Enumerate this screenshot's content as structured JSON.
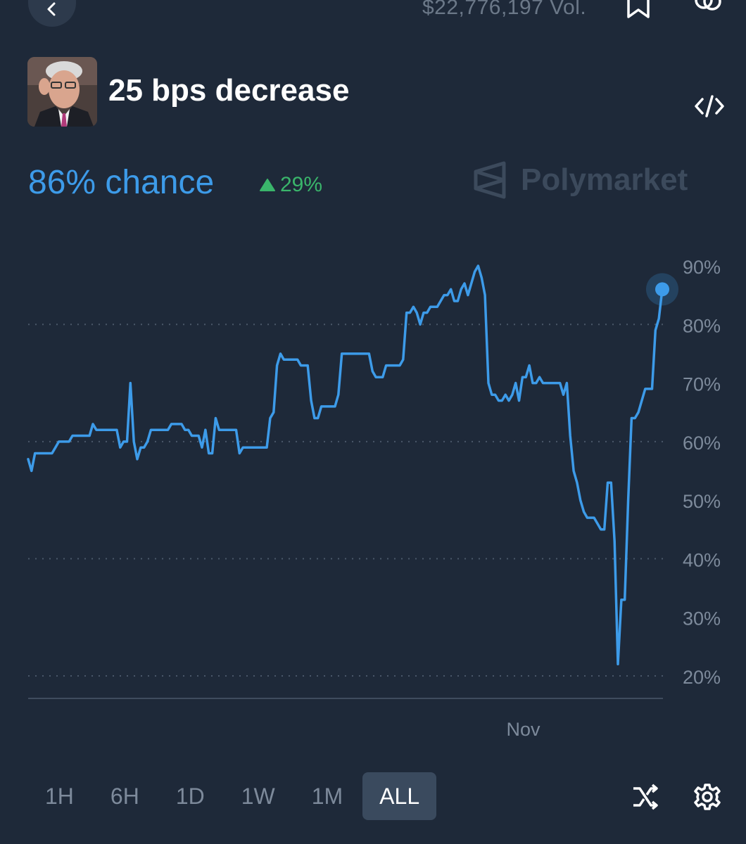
{
  "header": {
    "volume_text": "$22,776,197 Vol."
  },
  "market": {
    "title": "25 bps decrease",
    "chance_text": "86% chance",
    "change_text": "29%",
    "brand": "Polymarket"
  },
  "colors": {
    "background": "#1e2939",
    "line": "#3d9be9",
    "positive": "#3ab56b",
    "axis_text": "#7d8a9b"
  },
  "icons": [
    "back-chevron-icon",
    "bookmark-icon",
    "link-icon",
    "code-embed-icon",
    "polymarket-logo-icon",
    "shuffle-icon",
    "gear-icon"
  ],
  "chart_data": {
    "type": "line",
    "title": "",
    "xlabel": "",
    "ylabel": "",
    "ylim": [
      18,
      92
    ],
    "y_ticks": [
      "90%",
      "80%",
      "70%",
      "60%",
      "50%",
      "40%",
      "30%",
      "20%"
    ],
    "y_tick_values": [
      90,
      80,
      70,
      60,
      50,
      40,
      30,
      20
    ],
    "x_tick_labels": [
      "Nov"
    ],
    "x_tick_positions": [
      0.78
    ],
    "gridlines": [
      80,
      60,
      40,
      20
    ],
    "series": [
      {
        "values": [
          57,
          55,
          58,
          58,
          58,
          58,
          58,
          58,
          59,
          60,
          60,
          60,
          60,
          61,
          61,
          61,
          61,
          61,
          61,
          63,
          62,
          62,
          62,
          62,
          62,
          62,
          62,
          59,
          60,
          60,
          70,
          60,
          57,
          59,
          59,
          60,
          62,
          62,
          62,
          62,
          62,
          62,
          63,
          63,
          63,
          63,
          62,
          62,
          61,
          61,
          61,
          59,
          62,
          58,
          58,
          64,
          62,
          62,
          62,
          62,
          62,
          62,
          58,
          59,
          59,
          59,
          59,
          59,
          59,
          59,
          59,
          64,
          65,
          73,
          75,
          74,
          74,
          74,
          74,
          74,
          73,
          73,
          73,
          67,
          64,
          64,
          66,
          66,
          66,
          66,
          66,
          68,
          75,
          75,
          75,
          75,
          75,
          75,
          75,
          75,
          75,
          72,
          71,
          71,
          71,
          73,
          73,
          73,
          73,
          73,
          74,
          82,
          82,
          83,
          82,
          80,
          82,
          82,
          83,
          83,
          83,
          84,
          85,
          85,
          86,
          84,
          84,
          86,
          87,
          85,
          87,
          89,
          90,
          88,
          85,
          70,
          68,
          68,
          67,
          67,
          68,
          67,
          68,
          70,
          67,
          71,
          71,
          73,
          70,
          70,
          71,
          70,
          70,
          70,
          70,
          70,
          70,
          68,
          70,
          61,
          55,
          53,
          50,
          48,
          47,
          47,
          47,
          46,
          45,
          45,
          53,
          53,
          43,
          22,
          33,
          33,
          50,
          64,
          64,
          65,
          67,
          69,
          69,
          69,
          79,
          81,
          86
        ]
      }
    ]
  },
  "range_selector": {
    "options": [
      "1H",
      "6H",
      "1D",
      "1W",
      "1M",
      "ALL"
    ],
    "active": "ALL"
  }
}
